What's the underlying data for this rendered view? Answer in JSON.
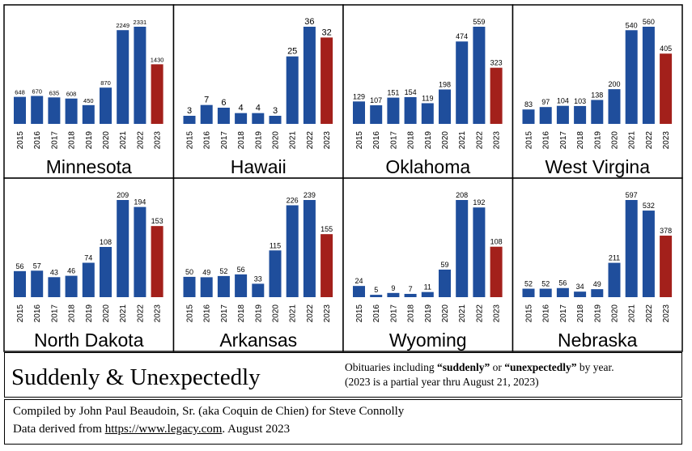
{
  "colors": {
    "normal_bar": "#1f4e9c",
    "partial_bar": "#a3201b",
    "border": "#000000"
  },
  "chart_data": [
    {
      "type": "bar",
      "title": "Minnesota",
      "categories": [
        "2015",
        "2016",
        "2017",
        "2018",
        "2019",
        "2020",
        "2021",
        "2022",
        "2023"
      ],
      "values": [
        648,
        670,
        635,
        608,
        450,
        870,
        2249,
        2331,
        1430
      ]
    },
    {
      "type": "bar",
      "title": "Hawaii",
      "categories": [
        "2015",
        "2016",
        "2017",
        "2018",
        "2019",
        "2020",
        "2021",
        "2022",
        "2023"
      ],
      "values": [
        3,
        7,
        6,
        4,
        4,
        3,
        25,
        36,
        32
      ]
    },
    {
      "type": "bar",
      "title": "Oklahoma",
      "categories": [
        "2015",
        "2016",
        "2017",
        "2018",
        "2019",
        "2020",
        "2021",
        "2022",
        "2023"
      ],
      "values": [
        129,
        107,
        151,
        154,
        119,
        198,
        474,
        559,
        323
      ]
    },
    {
      "type": "bar",
      "title": "West Virgina",
      "categories": [
        "2015",
        "2016",
        "2017",
        "2018",
        "2019",
        "2020",
        "2021",
        "2022",
        "2023"
      ],
      "values": [
        83,
        97,
        104,
        103,
        138,
        200,
        540,
        560,
        405
      ]
    },
    {
      "type": "bar",
      "title": "North Dakota",
      "categories": [
        "2015",
        "2016",
        "2017",
        "2018",
        "2019",
        "2020",
        "2021",
        "2022",
        "2023"
      ],
      "values": [
        56,
        57,
        43,
        46,
        74,
        108,
        209,
        194,
        153
      ]
    },
    {
      "type": "bar",
      "title": "Arkansas",
      "categories": [
        "2015",
        "2016",
        "2017",
        "2018",
        "2019",
        "2020",
        "2021",
        "2022",
        "2023"
      ],
      "values": [
        50,
        49,
        52,
        56,
        33,
        115,
        226,
        239,
        155
      ]
    },
    {
      "type": "bar",
      "title": "Wyoming",
      "categories": [
        "2015",
        "2016",
        "2017",
        "2018",
        "2019",
        "2020",
        "2021",
        "2022",
        "2023"
      ],
      "values": [
        24,
        5,
        9,
        7,
        11,
        59,
        208,
        192,
        108
      ]
    },
    {
      "type": "bar",
      "title": "Nebraska",
      "categories": [
        "2015",
        "2016",
        "2017",
        "2018",
        "2019",
        "2020",
        "2021",
        "2022",
        "2023"
      ],
      "values": [
        52,
        52,
        56,
        34,
        49,
        211,
        597,
        532,
        378
      ]
    }
  ],
  "caption": {
    "title": "Suddenly & Unexpectedly",
    "line1_prefix": "Obituaries including ",
    "word1": "“suddenly”",
    "line1_mid": " or ",
    "word2": "“unexpectedly”",
    "line1_suffix": " by year.",
    "line2": "(2023 is a partial year thru August 21, 2023)"
  },
  "footer": {
    "line1": "Compiled by John Paul Beaudoin, Sr. (aka Coquin de Chien) for Steve Connolly",
    "line2_prefix": "Data derived from ",
    "link": "https://www.legacy.com",
    "line2_suffix": ". August 2023"
  }
}
